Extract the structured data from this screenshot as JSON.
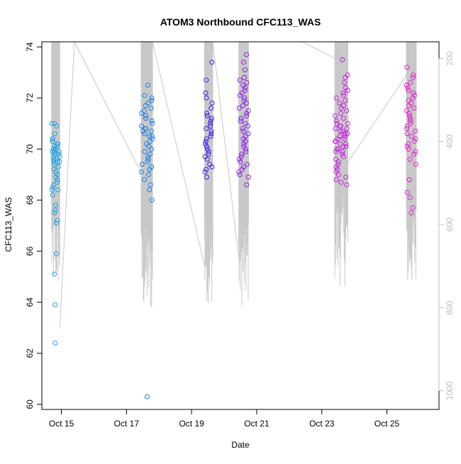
{
  "chart_data": {
    "type": "scatter",
    "title": "ATOM3 Northbound CFC113_WAS",
    "xlabel": "Date",
    "ylabel": "CFC113_WAS",
    "xlim": [
      14.4,
      26.6
    ],
    "ylim": [
      59.8,
      74.2
    ],
    "x_ticks": [
      {
        "value": 15,
        "label": "Oct 15"
      },
      {
        "value": 17,
        "label": "Oct 17"
      },
      {
        "value": 19,
        "label": "Oct 19"
      },
      {
        "value": 21,
        "label": "Oct 21"
      },
      {
        "value": 23,
        "label": "Oct 23"
      },
      {
        "value": 25,
        "label": "Oct 25"
      }
    ],
    "y_ticks": [
      60,
      62,
      64,
      66,
      68,
      70,
      72,
      74
    ],
    "secondary_axis": {
      "label": "",
      "inverted": true,
      "range": [
        1045,
        160
      ],
      "ticks": [
        200,
        400,
        600,
        800,
        1000
      ],
      "color": "#bdbdbd"
    },
    "grid": false,
    "legend": "none",
    "series": [
      {
        "color": "#1ba3e8",
        "x_range": [
          14.7,
          14.95
        ],
        "y_values": [
          71.0,
          71.0,
          70.9,
          70.6,
          70.4,
          70.4,
          70.3,
          70.3,
          70.2,
          70.2,
          70.1,
          70.1,
          70.0,
          70.0,
          69.9,
          69.9,
          69.9,
          69.8,
          69.8,
          69.7,
          69.7,
          69.6,
          69.6,
          69.5,
          69.5,
          69.5,
          69.4,
          69.3,
          69.2,
          69.1,
          69.0,
          68.9,
          68.8,
          68.7,
          68.6,
          68.5,
          68.4,
          68.4,
          68.2,
          67.8,
          67.6,
          67.5,
          67.2,
          67.1,
          65.9,
          65.1,
          63.9,
          62.4
        ]
      },
      {
        "color": "#1a7fe6",
        "x_range": [
          17.45,
          17.8
        ],
        "y_values": [
          72.5,
          72.1,
          72.0,
          71.9,
          71.8,
          71.7,
          71.6,
          71.5,
          71.4,
          71.3,
          71.2,
          71.1,
          71.0,
          70.9,
          70.8,
          70.8,
          70.7,
          70.7,
          70.6,
          70.5,
          70.5,
          70.4,
          70.3,
          70.2,
          70.1,
          70.0,
          69.9,
          69.8,
          69.7,
          69.6,
          69.5,
          69.4,
          69.3,
          69.2,
          69.1,
          69.0,
          68.8,
          68.6,
          68.4,
          68.0,
          60.3
        ]
      },
      {
        "color": "#3a1fe8",
        "x_range": [
          19.4,
          19.65
        ],
        "y_values": [
          73.4,
          72.7,
          72.2,
          72.0,
          71.8,
          71.6,
          71.4,
          71.3,
          71.2,
          71.1,
          71.0,
          70.9,
          70.8,
          70.7,
          70.6,
          70.5,
          70.4,
          70.3,
          70.2,
          70.1,
          70.0,
          69.9,
          69.8,
          69.7,
          69.6,
          69.4,
          69.3,
          69.2,
          69.1,
          68.9
        ]
      },
      {
        "color": "#8a1ee8",
        "x_range": [
          20.45,
          20.75
        ],
        "y_values": [
          73.7,
          73.4,
          73.1,
          72.8,
          72.7,
          72.6,
          72.5,
          72.4,
          72.3,
          72.2,
          72.1,
          72.0,
          71.9,
          71.8,
          71.7,
          71.6,
          71.5,
          71.4,
          71.3,
          71.2,
          71.1,
          71.0,
          70.9,
          70.8,
          70.7,
          70.6,
          70.5,
          70.4,
          70.3,
          70.2,
          70.1,
          70.0,
          69.9,
          69.8,
          69.7,
          69.6,
          69.5,
          69.4,
          69.3,
          69.2,
          69.1,
          69.0,
          68.9,
          68.6
        ]
      },
      {
        "color": "#c41ee0",
        "x_range": [
          23.4,
          23.8
        ],
        "y_values": [
          73.5,
          72.9,
          72.8,
          72.6,
          72.4,
          72.3,
          72.2,
          72.1,
          72.0,
          71.9,
          71.8,
          71.7,
          71.6,
          71.5,
          71.4,
          71.3,
          71.2,
          71.1,
          71.0,
          71.0,
          70.9,
          70.9,
          70.8,
          70.8,
          70.7,
          70.7,
          70.6,
          70.6,
          70.5,
          70.5,
          70.4,
          70.4,
          70.3,
          70.3,
          70.2,
          70.2,
          70.1,
          70.1,
          70.0,
          70.0,
          69.9,
          69.9,
          69.8,
          69.7,
          69.6,
          69.5,
          69.4,
          69.3,
          69.2,
          69.1,
          69.0,
          68.9,
          68.8,
          68.7,
          68.6
        ]
      },
      {
        "color": "#e61ed2",
        "x_range": [
          25.6,
          25.9
        ],
        "y_values": [
          73.2,
          72.9,
          72.8,
          72.6,
          72.5,
          72.4,
          72.3,
          72.2,
          72.1,
          72.0,
          71.9,
          71.8,
          71.7,
          71.6,
          71.5,
          71.4,
          71.3,
          71.2,
          71.1,
          71.0,
          70.9,
          70.8,
          70.7,
          70.6,
          70.5,
          70.4,
          70.3,
          70.2,
          70.1,
          70.0,
          69.9,
          69.8,
          69.6,
          69.4,
          68.8,
          68.3,
          68.1,
          67.7,
          67.5
        ]
      }
    ],
    "altitude_track": {
      "color": "#c8c8c8",
      "bursts": [
        {
          "x_range": [
            14.7,
            14.95
          ],
          "bottom": 760
        },
        {
          "x_range": [
            17.45,
            17.8
          ],
          "bottom": 820
        },
        {
          "x_range": [
            19.4,
            19.65
          ],
          "bottom": 790
        },
        {
          "x_range": [
            20.45,
            20.75
          ],
          "bottom": 800
        },
        {
          "x_range": [
            23.4,
            23.8
          ],
          "bottom": 750
        },
        {
          "x_range": [
            25.6,
            25.9
          ],
          "bottom": 760
        }
      ],
      "connectors": [
        {
          "from": [
            14.95,
            850
          ],
          "to": [
            15.4,
            160
          ]
        },
        {
          "from": [
            15.4,
            160
          ],
          "to": [
            17.45,
            475
          ]
        },
        {
          "from": [
            17.8,
            160
          ],
          "to": [
            19.4,
            700
          ]
        },
        {
          "from": [
            19.65,
            160
          ],
          "to": [
            20.45,
            680
          ]
        },
        {
          "from": [
            22.4,
            160
          ],
          "to": [
            23.4,
            200
          ]
        },
        {
          "from": [
            23.8,
            450
          ],
          "to": [
            25.6,
            240
          ]
        }
      ]
    }
  }
}
